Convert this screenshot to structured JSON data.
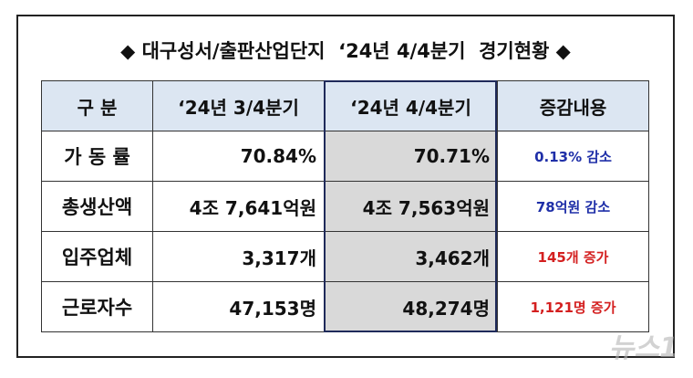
{
  "header": {
    "title": "◆ 대구성서/출판산업단지  ‘24년 4/4분기  경기현황 ◆"
  },
  "table": {
    "headers": [
      "구    분",
      "‘24년 3/4분기",
      "‘24년 4/4분기",
      "증감내용"
    ],
    "rows": [
      [
        "가 동 률",
        "70.84%",
        "70.71%",
        "0.13% 감소"
      ],
      [
        "총생산액",
        "4조 7,641억원",
        "4조 7,563억원",
        "78억원 감소"
      ],
      [
        "입주업체",
        "3,317개",
        "3,462개",
        "145개 증가"
      ],
      [
        "근로자수",
        "47,153명",
        "48,274명",
        "1,121명 증가"
      ]
    ]
  },
  "watermark": "뉴스1"
}
